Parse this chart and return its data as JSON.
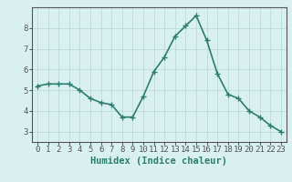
{
  "x": [
    0,
    1,
    2,
    3,
    4,
    5,
    6,
    7,
    8,
    9,
    10,
    11,
    12,
    13,
    14,
    15,
    16,
    17,
    18,
    19,
    20,
    21,
    22,
    23
  ],
  "y": [
    5.2,
    5.3,
    5.3,
    5.3,
    5.0,
    4.6,
    4.4,
    4.3,
    3.7,
    3.7,
    4.7,
    5.9,
    6.6,
    7.6,
    8.1,
    8.6,
    7.4,
    5.8,
    4.8,
    4.6,
    4.0,
    3.7,
    3.3,
    3.0
  ],
  "title": "",
  "xlabel": "Humidex (Indice chaleur)",
  "ylabel": "",
  "xlim": [
    -0.5,
    23.5
  ],
  "ylim": [
    2.5,
    9.0
  ],
  "yticks": [
    3,
    4,
    5,
    6,
    7,
    8
  ],
  "xticks": [
    0,
    1,
    2,
    3,
    4,
    5,
    6,
    7,
    8,
    9,
    10,
    11,
    12,
    13,
    14,
    15,
    16,
    17,
    18,
    19,
    20,
    21,
    22,
    23
  ],
  "line_color": "#2e7d6e",
  "marker_color": "#2e7d6e",
  "bg_color": "#d8f0f0",
  "grid_color": "#b8d8d8",
  "axis_color": "#555555",
  "xlabel_fontsize": 7.5,
  "tick_fontsize": 6.5,
  "line_width": 1.2,
  "marker_size": 4
}
